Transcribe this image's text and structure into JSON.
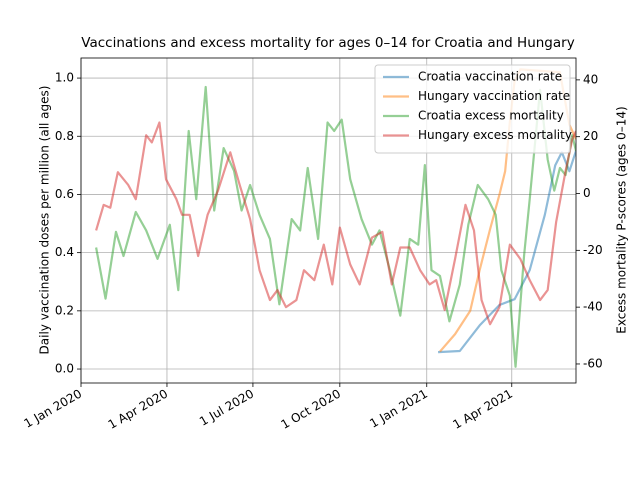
{
  "chart_data": {
    "type": "line",
    "title": "Vaccinations and excess mortality for ages 0–14 for Croatia and Hungary",
    "ylabel": "Daily vaccination doses per million (all ages)",
    "y2label": "Excess mortality P-scores (ages 0–14)",
    "xlim": [
      "2020-01-01",
      "2021-06-08"
    ],
    "xticks": [
      {
        "value": "2020-01-01",
        "label": "1 Jan 2020"
      },
      {
        "value": "2020-04-01",
        "label": "1 Apr 2020"
      },
      {
        "value": "2020-07-01",
        "label": "1 Jul 2020"
      },
      {
        "value": "2020-10-01",
        "label": "1 Oct 2020"
      },
      {
        "value": "2021-01-01",
        "label": "1 Jan 2021"
      },
      {
        "value": "2021-04-01",
        "label": "1 Apr 2021"
      }
    ],
    "ylim": [
      -0.048,
      1.069
    ],
    "yticks": [
      {
        "value": 0,
        "label": "0.0"
      },
      0.2,
      0.4,
      0.6,
      0.8,
      {
        "value": 1,
        "label": "1.0"
      }
    ],
    "y2lim": [
      -66.7,
      47.7
    ],
    "y2ticks": [
      -60,
      -40,
      -20,
      0,
      20,
      40
    ],
    "grid": true,
    "legend": "upper right",
    "series": [
      {
        "name": "Croatia vaccination rate",
        "color": "#1f77b4",
        "x": [
          "2021-01-13",
          "2021-02-05",
          "2021-02-26",
          "2021-03-19",
          "2021-04-04",
          "2021-04-20",
          "2021-05-06",
          "2021-05-17",
          "2021-05-24",
          "2021-06-01",
          "2021-06-08"
        ],
        "values": [
          0.058,
          0.062,
          0.15,
          0.22,
          0.24,
          0.34,
          0.53,
          0.7,
          0.745,
          0.68,
          0.75
        ]
      },
      {
        "name": "Hungary vaccination rate",
        "color": "#ff7f0e",
        "x": [
          "2021-01-15",
          "2021-01-31",
          "2021-02-16",
          "2021-02-26",
          "2021-03-09",
          "2021-03-19",
          "2021-03-25",
          "2021-03-30",
          "2021-04-04",
          "2021-04-10",
          "2021-05-22",
          "2021-06-01",
          "2021-06-08"
        ],
        "values": [
          0.06,
          0.12,
          0.2,
          0.34,
          0.48,
          0.6,
          0.68,
          0.85,
          0.99,
          1.03,
          1.02,
          0.84,
          0.79
        ]
      },
      {
        "name": "Croatia excess mortality",
        "color": "#2ca02c",
        "axis": "y2",
        "x": [
          "2020-01-17",
          "2020-01-27",
          "2020-02-07",
          "2020-02-15",
          "2020-02-28",
          "2020-03-10",
          "2020-03-22",
          "2020-04-04",
          "2020-04-13",
          "2020-04-24",
          "2020-05-02",
          "2020-05-12",
          "2020-05-21",
          "2020-05-31",
          "2020-06-11",
          "2020-06-19",
          "2020-06-28",
          "2020-07-08",
          "2020-07-19",
          "2020-07-29",
          "2020-08-11",
          "2020-08-20",
          "2020-08-28",
          "2020-09-08",
          "2020-09-18",
          "2020-09-25",
          "2020-10-03",
          "2020-10-12",
          "2020-10-24",
          "2020-11-04",
          "2020-11-12",
          "2020-11-23",
          "2020-12-04",
          "2020-12-14",
          "2020-12-23",
          "2020-12-30",
          "2021-01-06",
          "2021-01-15",
          "2021-01-25",
          "2021-02-05",
          "2021-02-14",
          "2021-02-24",
          "2021-03-07",
          "2021-03-15",
          "2021-03-21",
          "2021-03-30",
          "2021-04-05",
          "2021-04-14",
          "2021-04-20",
          "2021-05-01",
          "2021-05-09",
          "2021-05-16",
          "2021-05-22",
          "2021-05-28",
          "2021-06-04",
          "2021-06-08"
        ],
        "values": [
          -19,
          -37,
          -13.5,
          -22,
          -6.5,
          -13,
          -23,
          -11,
          -34,
          22,
          -2,
          37.5,
          -6,
          16,
          8,
          -6,
          3,
          -7.5,
          -16,
          -39,
          -9,
          -13,
          9,
          -16,
          25,
          22,
          26,
          5,
          -9,
          -18,
          -13,
          -27,
          -43,
          -16,
          -18,
          10,
          -27,
          -29,
          -45,
          -32,
          -11,
          3,
          -2,
          -7.5,
          -27,
          -36,
          -61,
          -22,
          -2,
          36.5,
          12,
          1,
          9,
          6.5,
          20.5,
          15
        ]
      },
      {
        "name": "Hungary excess mortality",
        "color": "#d62728",
        "axis": "y2",
        "x": [
          "2020-01-17",
          "2020-01-25",
          "2020-02-01",
          "2020-02-09",
          "2020-02-20",
          "2020-02-28",
          "2020-03-10",
          "2020-03-16",
          "2020-03-24",
          "2020-03-31",
          "2020-04-11",
          "2020-04-17",
          "2020-04-25",
          "2020-05-04",
          "2020-05-14",
          "2020-05-25",
          "2020-06-07",
          "2020-06-17",
          "2020-06-28",
          "2020-07-08",
          "2020-07-19",
          "2020-07-27",
          "2020-08-05",
          "2020-08-16",
          "2020-08-24",
          "2020-09-04",
          "2020-09-14",
          "2020-09-23",
          "2020-10-01",
          "2020-10-12",
          "2020-10-22",
          "2020-11-04",
          "2020-11-15",
          "2020-11-25",
          "2020-12-04",
          "2020-12-14",
          "2020-12-25",
          "2021-01-04",
          "2021-01-11",
          "2021-01-20",
          "2021-01-31",
          "2021-02-11",
          "2021-02-20",
          "2021-02-28",
          "2021-03-09",
          "2021-03-19",
          "2021-03-30",
          "2021-04-10",
          "2021-04-20",
          "2021-05-01",
          "2021-05-09",
          "2021-05-18",
          "2021-05-28",
          "2021-06-04",
          "2021-06-08"
        ],
        "values": [
          -13,
          -4,
          -5,
          7.5,
          3,
          -2,
          20.5,
          18,
          25,
          5,
          -2,
          -7.5,
          -7.5,
          -22,
          -7.5,
          1,
          14.5,
          3,
          -9,
          -27,
          -37.5,
          -34,
          -40,
          -37.5,
          -27,
          -30.5,
          -18,
          -32,
          -12,
          -25,
          -32,
          -15.5,
          -13.5,
          -32,
          -19,
          -19,
          -27,
          -32,
          -30.5,
          -41,
          -23,
          -4,
          -13,
          -37.5,
          -46,
          -40,
          -18,
          -23,
          -30.5,
          -37.5,
          -34,
          -10,
          8,
          19,
          22
        ]
      }
    ]
  }
}
